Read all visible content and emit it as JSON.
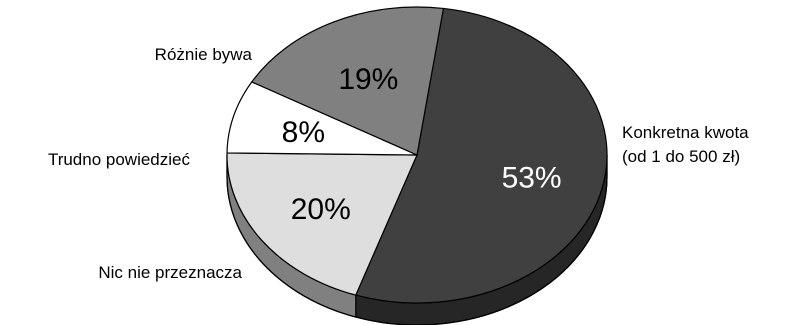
{
  "chart_data": {
    "type": "pie",
    "style": "3d-pie",
    "title": "",
    "slices": [
      {
        "label_lines": [
          "Konkretna kwota",
          "(od 1 do 500 zł)"
        ],
        "value": 53,
        "value_label": "53%",
        "color": "#404040",
        "side_color": "#262626",
        "text_color": "#ffffff"
      },
      {
        "label_lines": [
          "Nic nie przeznacza"
        ],
        "value": 20,
        "value_label": "20%",
        "color": "#dedede",
        "side_color": "#808080",
        "text_color": "#000000"
      },
      {
        "label_lines": [
          "Trudno powiedzieć"
        ],
        "value": 8,
        "value_label": "8%",
        "color": "#ffffff",
        "side_color": "#9a9a9a",
        "text_color": "#000000"
      },
      {
        "label_lines": [
          "Różnie bywa"
        ],
        "value": 19,
        "value_label": "19%",
        "color": "#808080",
        "side_color": "#5a5a5a",
        "text_color": "#000000"
      }
    ]
  }
}
